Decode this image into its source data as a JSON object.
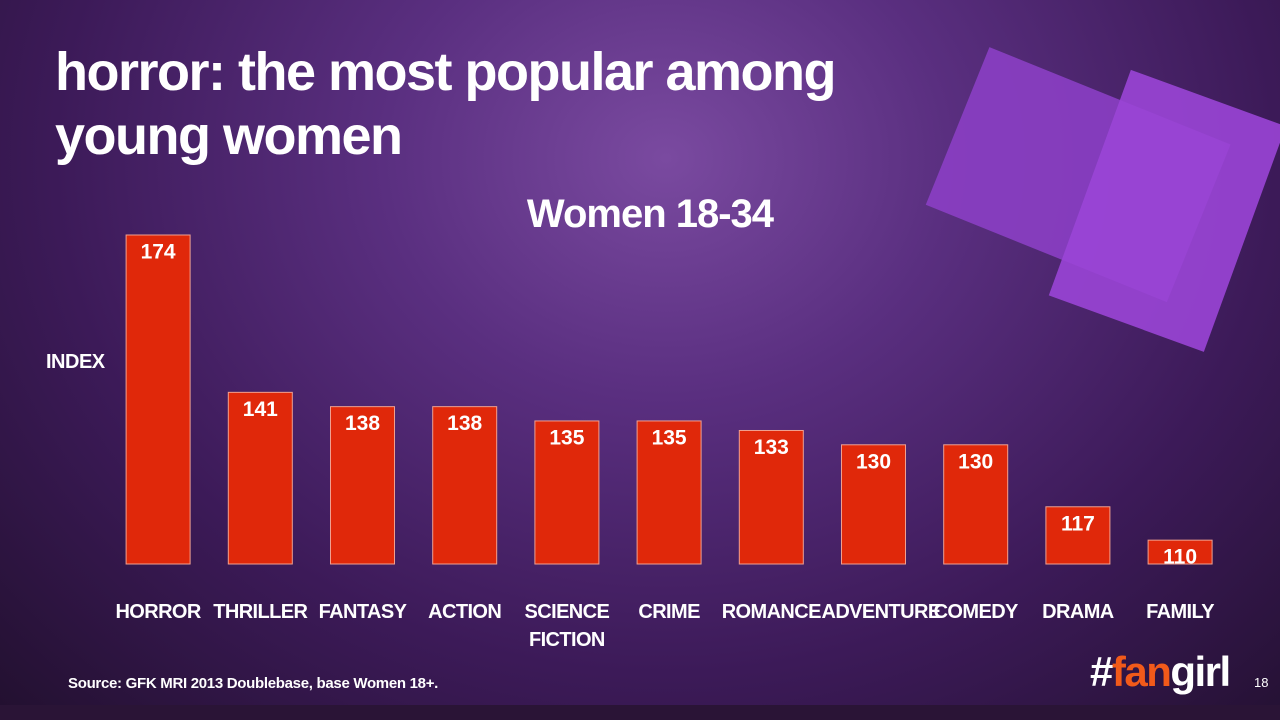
{
  "chart_data": {
    "type": "bar",
    "title": "horror: the most popular among young women",
    "subtitle": "Women 18-34",
    "y_label": "INDEX",
    "categories": [
      "HORROR",
      "THRILLER",
      "FANTASY",
      "ACTION",
      "SCIENCE FICTION",
      "CRIME",
      "ROMANCE",
      "ADVENTURE",
      "COMEDY",
      "DRAMA",
      "FAMILY"
    ],
    "values": [
      174,
      141,
      138,
      138,
      135,
      135,
      133,
      130,
      130,
      117,
      110
    ],
    "color": "#e0280a",
    "ylim": [
      105,
      174
    ]
  },
  "footer": {
    "source": "Source: GFK MRI 2013 Doublebase, base Women 18+.",
    "logo": [
      "#",
      "fan",
      "girl"
    ],
    "page": "18"
  }
}
